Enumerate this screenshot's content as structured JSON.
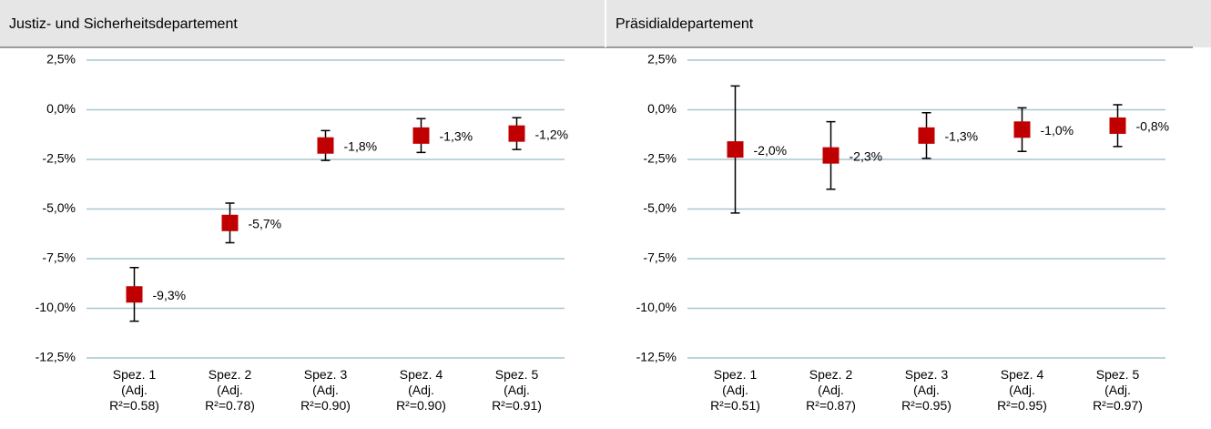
{
  "chart_data": [
    {
      "type": "errorbar",
      "title": "Justiz- und Sicherheitsdepartement",
      "categories": [
        "Spez. 1\n(Adj.\nR²=0.58)",
        "Spez. 2\n(Adj.\nR²=0.78)",
        "Spez. 3\n(Adj.\nR²=0.90)",
        "Spez. 4\n(Adj.\nR²=0.90)",
        "Spez. 5\n(Adj.\nR²=0.91)"
      ],
      "values": [
        -9.3,
        -5.7,
        -1.8,
        -1.3,
        -1.2
      ],
      "value_labels": [
        "-9,3%",
        "-5,7%",
        "-1,8%",
        "-1,3%",
        "-1,2%"
      ],
      "errors": [
        1.35,
        1.0,
        0.75,
        0.85,
        0.8
      ],
      "color": "#c00000",
      "ylim": [
        -12.5,
        2.5
      ],
      "yticks": [
        {
          "value": 2.5,
          "label": "2,5%"
        },
        {
          "value": 0,
          "label": "0,0%"
        },
        {
          "value": -2.5,
          "label": "-2,5%"
        },
        {
          "value": -5,
          "label": "-5,0%"
        },
        {
          "value": -7.5,
          "label": "-7,5%"
        },
        {
          "value": -10,
          "label": "-10,0%"
        },
        {
          "value": -12.5,
          "label": "-12,5%"
        }
      ],
      "grid": true
    },
    {
      "type": "errorbar",
      "title": "Präsidialdepartement",
      "categories": [
        "Spez. 1\n(Adj.\nR²=0.51)",
        "Spez. 2\n(Adj.\nR²=0.87)",
        "Spez. 3\n(Adj.\nR²=0.95)",
        "Spez. 4\n(Adj.\nR²=0.95)",
        "Spez. 5\n(Adj.\nR²=0.97)"
      ],
      "values": [
        -2.0,
        -2.3,
        -1.3,
        -1.0,
        -0.8
      ],
      "value_labels": [
        "-2,0%",
        "-2,3%",
        "-1,3%",
        "-1,0%",
        "-0,8%"
      ],
      "errors": [
        3.2,
        1.7,
        1.15,
        1.1,
        1.05
      ],
      "color": "#c00000",
      "ylim": [
        -12.5,
        2.5
      ],
      "yticks": [
        {
          "value": 2.5,
          "label": "2,5%"
        },
        {
          "value": 0,
          "label": "0,0%"
        },
        {
          "value": -2.5,
          "label": "-2,5%"
        },
        {
          "value": -5,
          "label": "-5,0%"
        },
        {
          "value": -7.5,
          "label": "-7,5%"
        },
        {
          "value": -10,
          "label": "-10,0%"
        },
        {
          "value": -12.5,
          "label": "-12,5%"
        }
      ],
      "grid": true
    }
  ]
}
